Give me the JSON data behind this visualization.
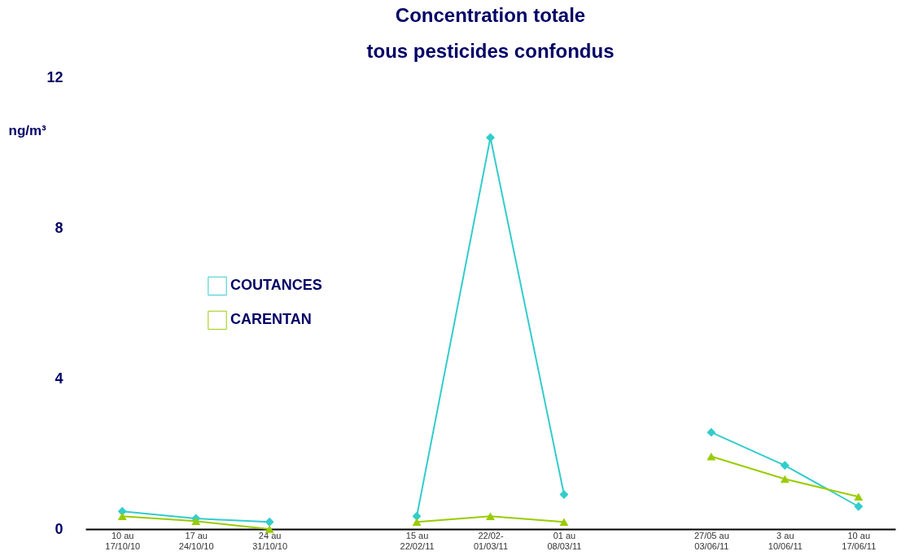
{
  "chart_data": {
    "type": "line",
    "title": "Concentration totale",
    "subtitle": "tous pesticides confondus",
    "ylabel": "ng/m³",
    "categories": [
      "10 au\n17/10/10",
      "17 au\n24/10/10",
      "24 au\n31/10/10",
      null,
      "15 au\n22/02/11",
      "22/02-\n01/03/11",
      "01 au\n08/03/11",
      null,
      "27/05 au\n03/06/11",
      "3 au\n10/06/11",
      "10 au\n17/06/11"
    ],
    "series": [
      {
        "name": "COUTANCES",
        "color": "#33cccc",
        "marker": "diamond",
        "values": [
          0.47,
          0.28,
          0.19,
          null,
          0.34,
          10.4,
          0.92,
          null,
          2.57,
          1.69,
          0.6
        ]
      },
      {
        "name": "CARENTAN",
        "color": "#99cc00",
        "marker": "triangle",
        "values": [
          0.34,
          0.21,
          0.0,
          null,
          0.19,
          0.34,
          0.19,
          null,
          1.93,
          1.33,
          0.86
        ]
      }
    ],
    "ylim": [
      0,
      12
    ],
    "yticks": [
      0,
      4,
      8,
      12
    ],
    "grid": false,
    "legend": "left"
  }
}
